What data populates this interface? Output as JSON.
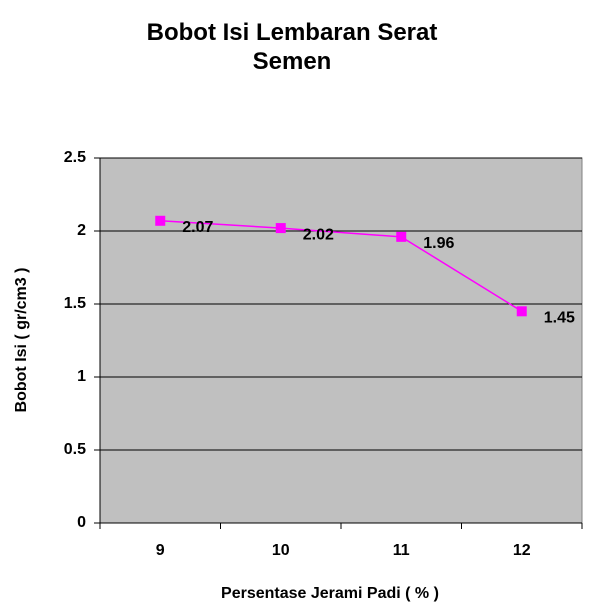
{
  "chart_data": {
    "type": "line",
    "title": "Bobot Isi Lembaran Serat Semen",
    "xlabel": "Persentase Jerami Padi ( % )",
    "ylabel": "Bobot Isi ( gr/cm3 )",
    "categories": [
      "9",
      "10",
      "11",
      "12"
    ],
    "values": [
      2.07,
      2.02,
      1.96,
      1.45
    ],
    "color": "#ff00ff",
    "ylim": [
      0,
      2.5
    ],
    "yticks": [
      0,
      0.5,
      1,
      1.5,
      2,
      2.5
    ],
    "grid": true
  }
}
